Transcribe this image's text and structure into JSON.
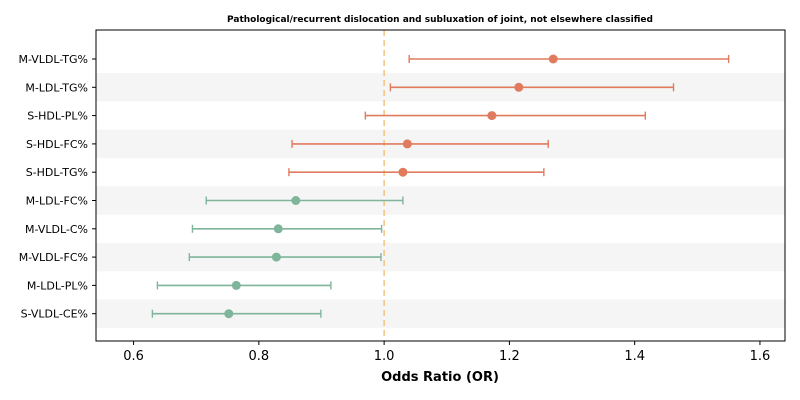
{
  "chart_data": {
    "type": "forest",
    "title": "Pathological/recurrent dislocation and subluxation of joint, not elsewhere classified",
    "xlabel": "Odds Ratio (OR)",
    "ylabel": "",
    "xlim": [
      0.54,
      1.64
    ],
    "xticks": [
      0.6,
      0.8,
      1.0,
      1.2,
      1.4,
      1.6
    ],
    "xtick_labels": [
      "0.6",
      "0.8",
      "1.0",
      "1.2",
      "1.4",
      "1.6"
    ],
    "reference_line": 1.0,
    "grid": false,
    "colors": {
      "positive": "#e07b5e",
      "negative": "#7fb59a",
      "reference": "#f5c27e",
      "band": "#f5f5f5"
    },
    "rows": [
      {
        "label": "M-VLDL-TG%",
        "or": 1.27,
        "lower": 1.04,
        "upper": 1.55
      },
      {
        "label": "M-LDL-TG%",
        "or": 1.215,
        "lower": 1.01,
        "upper": 1.462
      },
      {
        "label": "S-HDL-PL%",
        "or": 1.172,
        "lower": 0.97,
        "upper": 1.417
      },
      {
        "label": "S-HDL-FC%",
        "or": 1.037,
        "lower": 0.853,
        "upper": 1.262
      },
      {
        "label": "S-HDL-TG%",
        "or": 1.03,
        "lower": 0.848,
        "upper": 1.255
      },
      {
        "label": "M-LDL-FC%",
        "or": 0.859,
        "lower": 0.716,
        "upper": 1.03
      },
      {
        "label": "M-VLDL-C%",
        "or": 0.831,
        "lower": 0.694,
        "upper": 0.996
      },
      {
        "label": "M-VLDL-FC%",
        "or": 0.828,
        "lower": 0.689,
        "upper": 0.995
      },
      {
        "label": "M-LDL-PL%",
        "or": 0.764,
        "lower": 0.638,
        "upper": 0.915
      },
      {
        "label": "S-VLDL-CE%",
        "or": 0.752,
        "lower": 0.63,
        "upper": 0.899
      }
    ]
  }
}
